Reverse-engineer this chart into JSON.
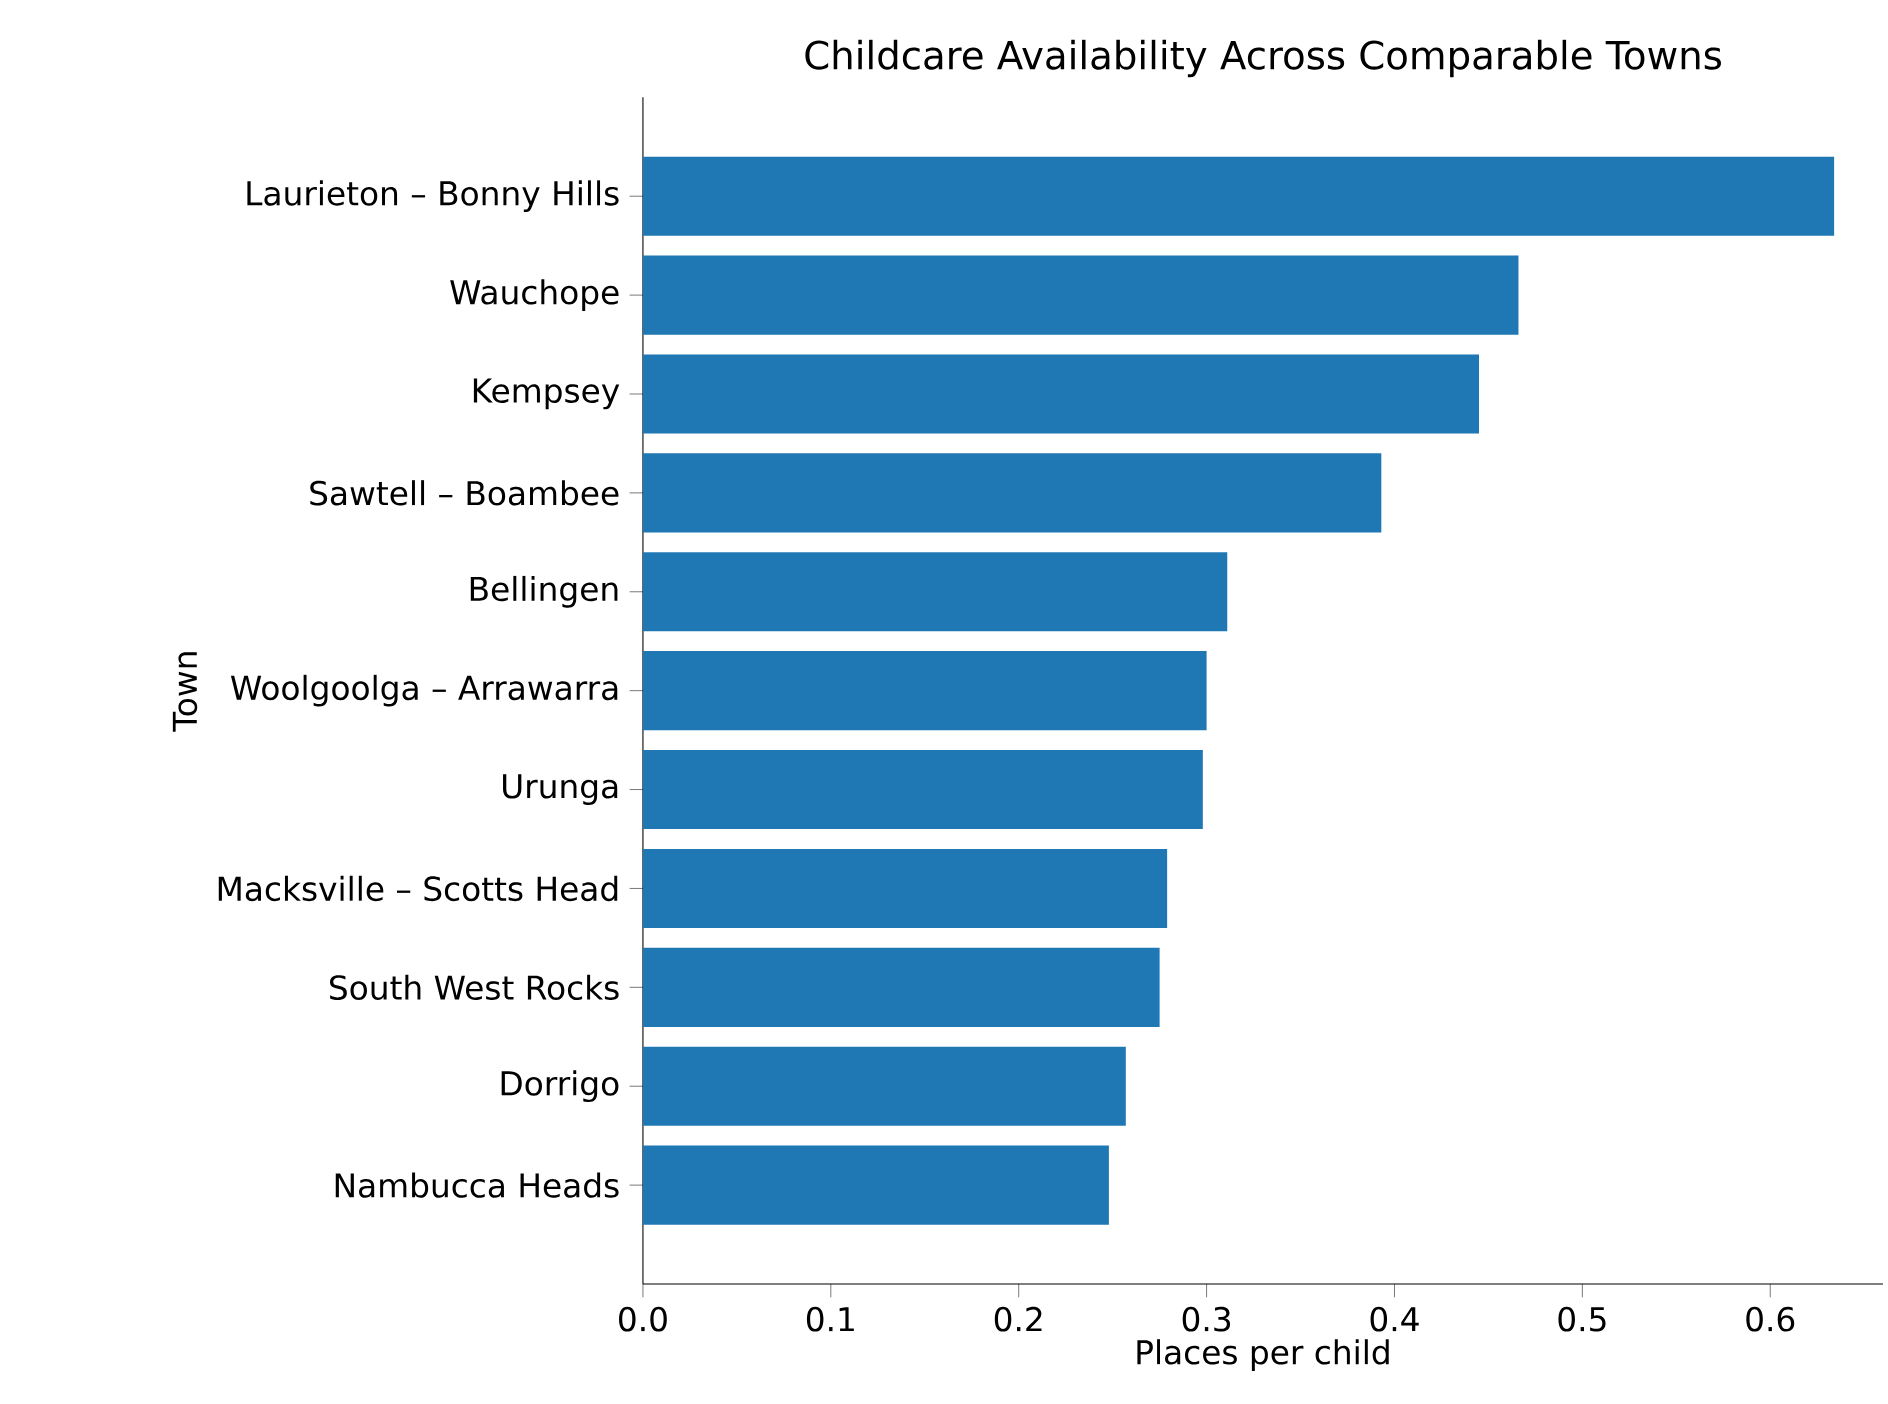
{
  "chart_data": {
    "type": "bar",
    "orientation": "horizontal",
    "title": "Childcare Availability Across Comparable Towns",
    "xlabel": "Places per child",
    "ylabel": "Town",
    "categories": [
      "Laurieton – Bonny Hills",
      "Wauchope",
      "Kempsey",
      "Sawtell – Boambee",
      "Bellingen",
      "Woolgoolga – Arrawarra",
      "Urunga",
      "Macksville – Scotts Head",
      "South West Rocks",
      "Dorrigo",
      "Nambucca Heads"
    ],
    "values": [
      0.634,
      0.466,
      0.445,
      0.393,
      0.311,
      0.3,
      0.298,
      0.279,
      0.275,
      0.257,
      0.248
    ],
    "color": "#1f77b4",
    "xlim": [
      0,
      0.66
    ],
    "xticks": [
      {
        "value": 0,
        "label": "0.0"
      },
      0.1,
      0.2,
      0.3,
      0.4,
      0.5,
      0.6
    ]
  }
}
